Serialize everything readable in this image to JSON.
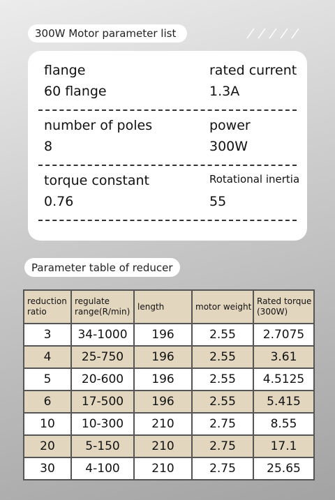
{
  "params": {
    "title": "300W Motor parameter list",
    "items": [
      {
        "label": "flange",
        "value": "60 flange"
      },
      {
        "label": "rated current",
        "value": "1.3A"
      },
      {
        "label": "number of poles",
        "value": "8"
      },
      {
        "label": "power",
        "value": "300W"
      },
      {
        "label": "torque constant",
        "value": "0.76"
      },
      {
        "label": "Rotational inertia",
        "value": "55"
      }
    ]
  },
  "reducer": {
    "title": "Parameter table of reducer",
    "headers": [
      "reduction ratio",
      "regulate range(R/min)",
      "length",
      "motor weight",
      "Rated torque (300W)"
    ],
    "rows": [
      [
        "3",
        "34-1000",
        "196",
        "2.55",
        "2.7075"
      ],
      [
        "4",
        "25-750",
        "196",
        "2.55",
        "3.61"
      ],
      [
        "5",
        "20-600",
        "196",
        "2.55",
        "4.5125"
      ],
      [
        "6",
        "17-500",
        "196",
        "2.55",
        "5.415"
      ],
      [
        "10",
        "10-300",
        "210",
        "2.75",
        "8.55"
      ],
      [
        "20",
        "5-150",
        "210",
        "2.75",
        "17.1"
      ],
      [
        "30",
        "4-100",
        "210",
        "2.75",
        "25.65"
      ]
    ]
  }
}
